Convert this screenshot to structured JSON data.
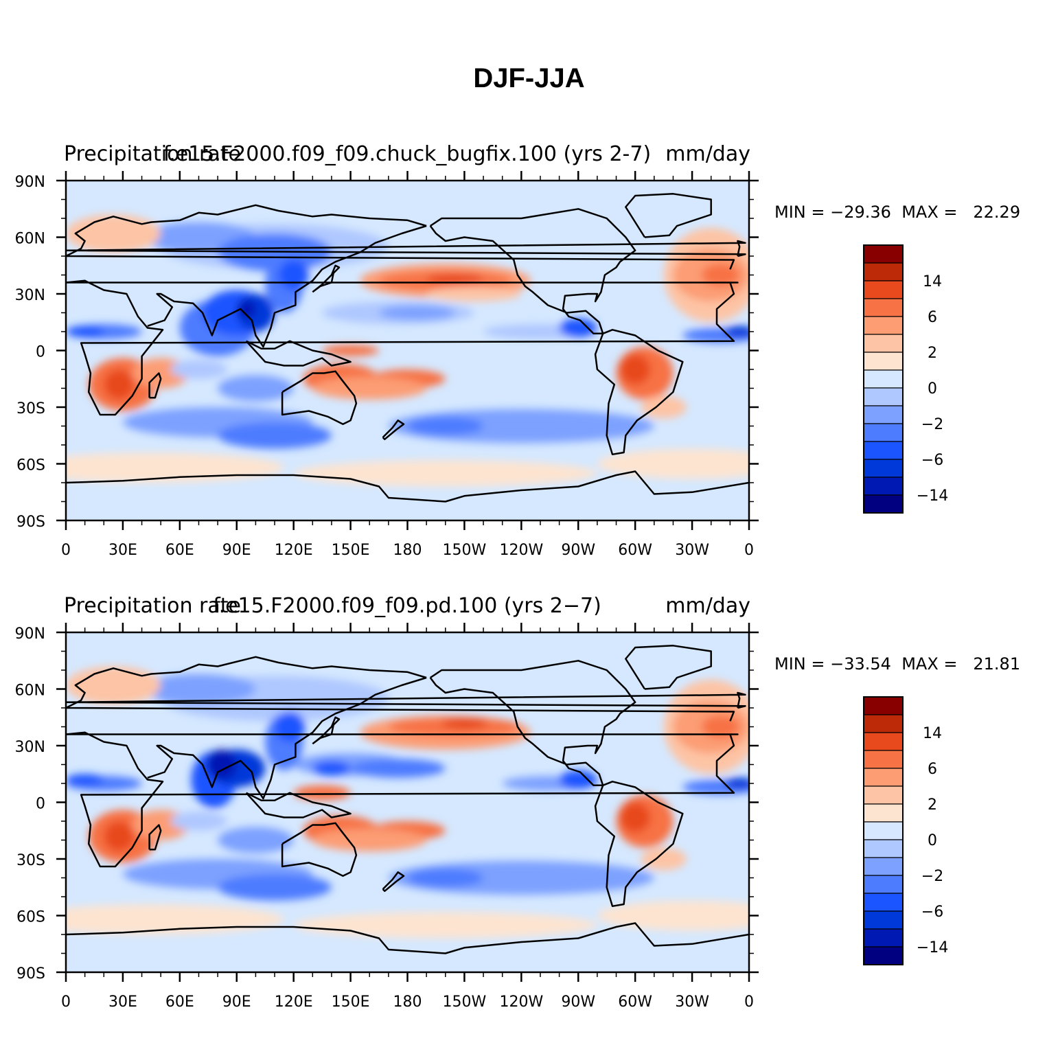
{
  "title": "DJF-JJA",
  "colors": {
    "levels": [
      "#000080",
      "#0019b3",
      "#0039d9",
      "#1a55ff",
      "#4d7cff",
      "#7da1ff",
      "#afc8ff",
      "#d5e8ff",
      "#fde4d0",
      "#fdc4a5",
      "#fc9d74",
      "#f77245",
      "#e84a1e",
      "#bd2a08",
      "#880000"
    ],
    "coast": "#000000"
  },
  "panels": [
    {
      "title_left": "Precipitation rate",
      "title_center": "f.e15.F2000.f09_f09.chuck_bugfix.100 (yrs 2-7)",
      "title_right": "mm/day",
      "min_label": "MIN = −29.36",
      "max_label": "MAX =",
      "max_value": "22.29"
    },
    {
      "title_left": "Precipitation rate",
      "title_center": "f.e15.F2000.f09_f09.pd.100 (yrs 2−7)",
      "title_right": "mm/day",
      "min_label": "MIN = −33.54",
      "max_label": "MAX =",
      "max_value": "21.81"
    }
  ],
  "axes": {
    "lat_labels": [
      "90N",
      "60N",
      "30N",
      "0",
      "30S",
      "60S",
      "90S"
    ],
    "lon_labels": [
      "0",
      "30E",
      "60E",
      "90E",
      "120E",
      "150E",
      "180",
      "150W",
      "120W",
      "90W",
      "60W",
      "30W",
      "0"
    ]
  },
  "colorbar": {
    "labels": [
      "14",
      "6",
      "2",
      "0",
      "−2",
      "−6",
      "−14"
    ]
  }
}
